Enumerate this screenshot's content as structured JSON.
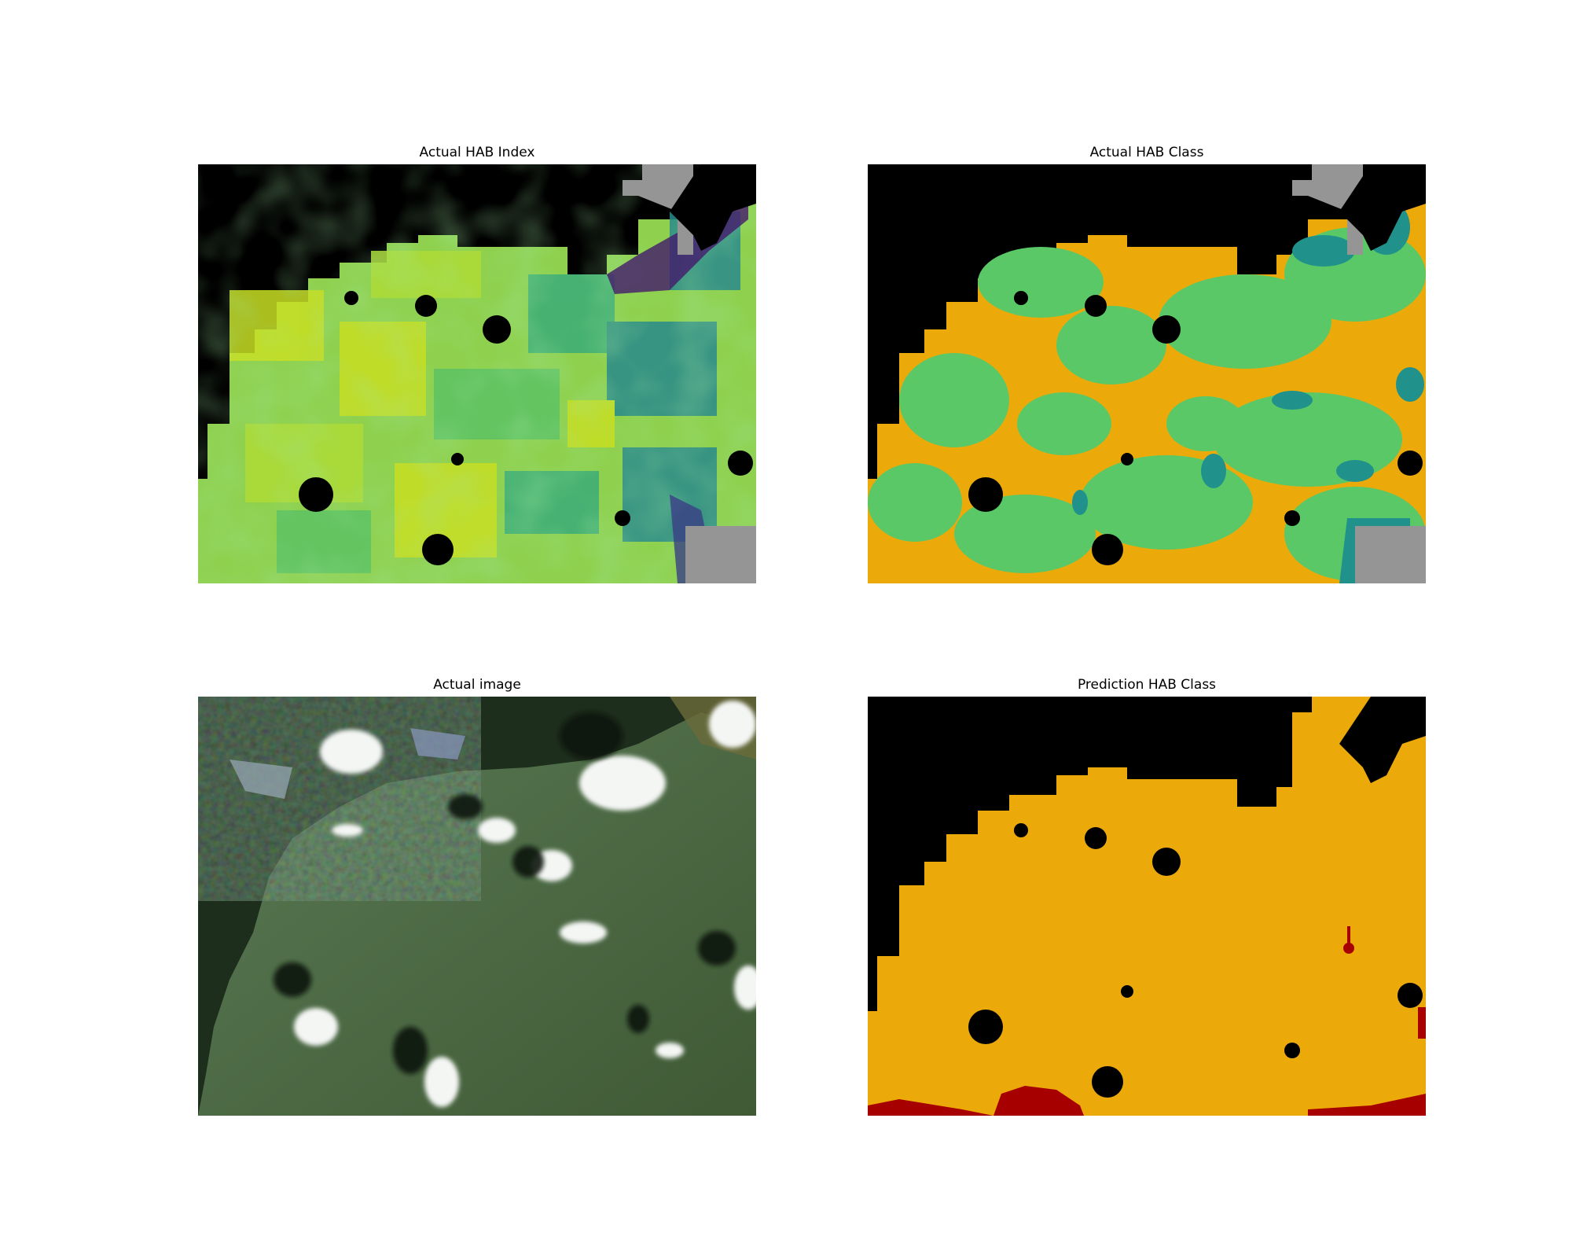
{
  "panels": [
    {
      "title": "Actual HAB Index"
    },
    {
      "title": "Actual HAB Class"
    },
    {
      "title": "Actual image"
    },
    {
      "title": "Prediction HAB Class"
    }
  ],
  "colors": {
    "land_mask": "#000000",
    "nodata_gray": "#959595",
    "index_high": "#c8df23",
    "index_mid": "#5cc263",
    "index_low": "#2a8a8c",
    "index_min": "#44196b",
    "class_orange": "#ecaa0a",
    "class_green": "#5ac866",
    "class_teal": "#20928b",
    "class_red": "#a70000",
    "water_green": "#4f6e4a",
    "cloud_white": "#f4f6f4"
  }
}
